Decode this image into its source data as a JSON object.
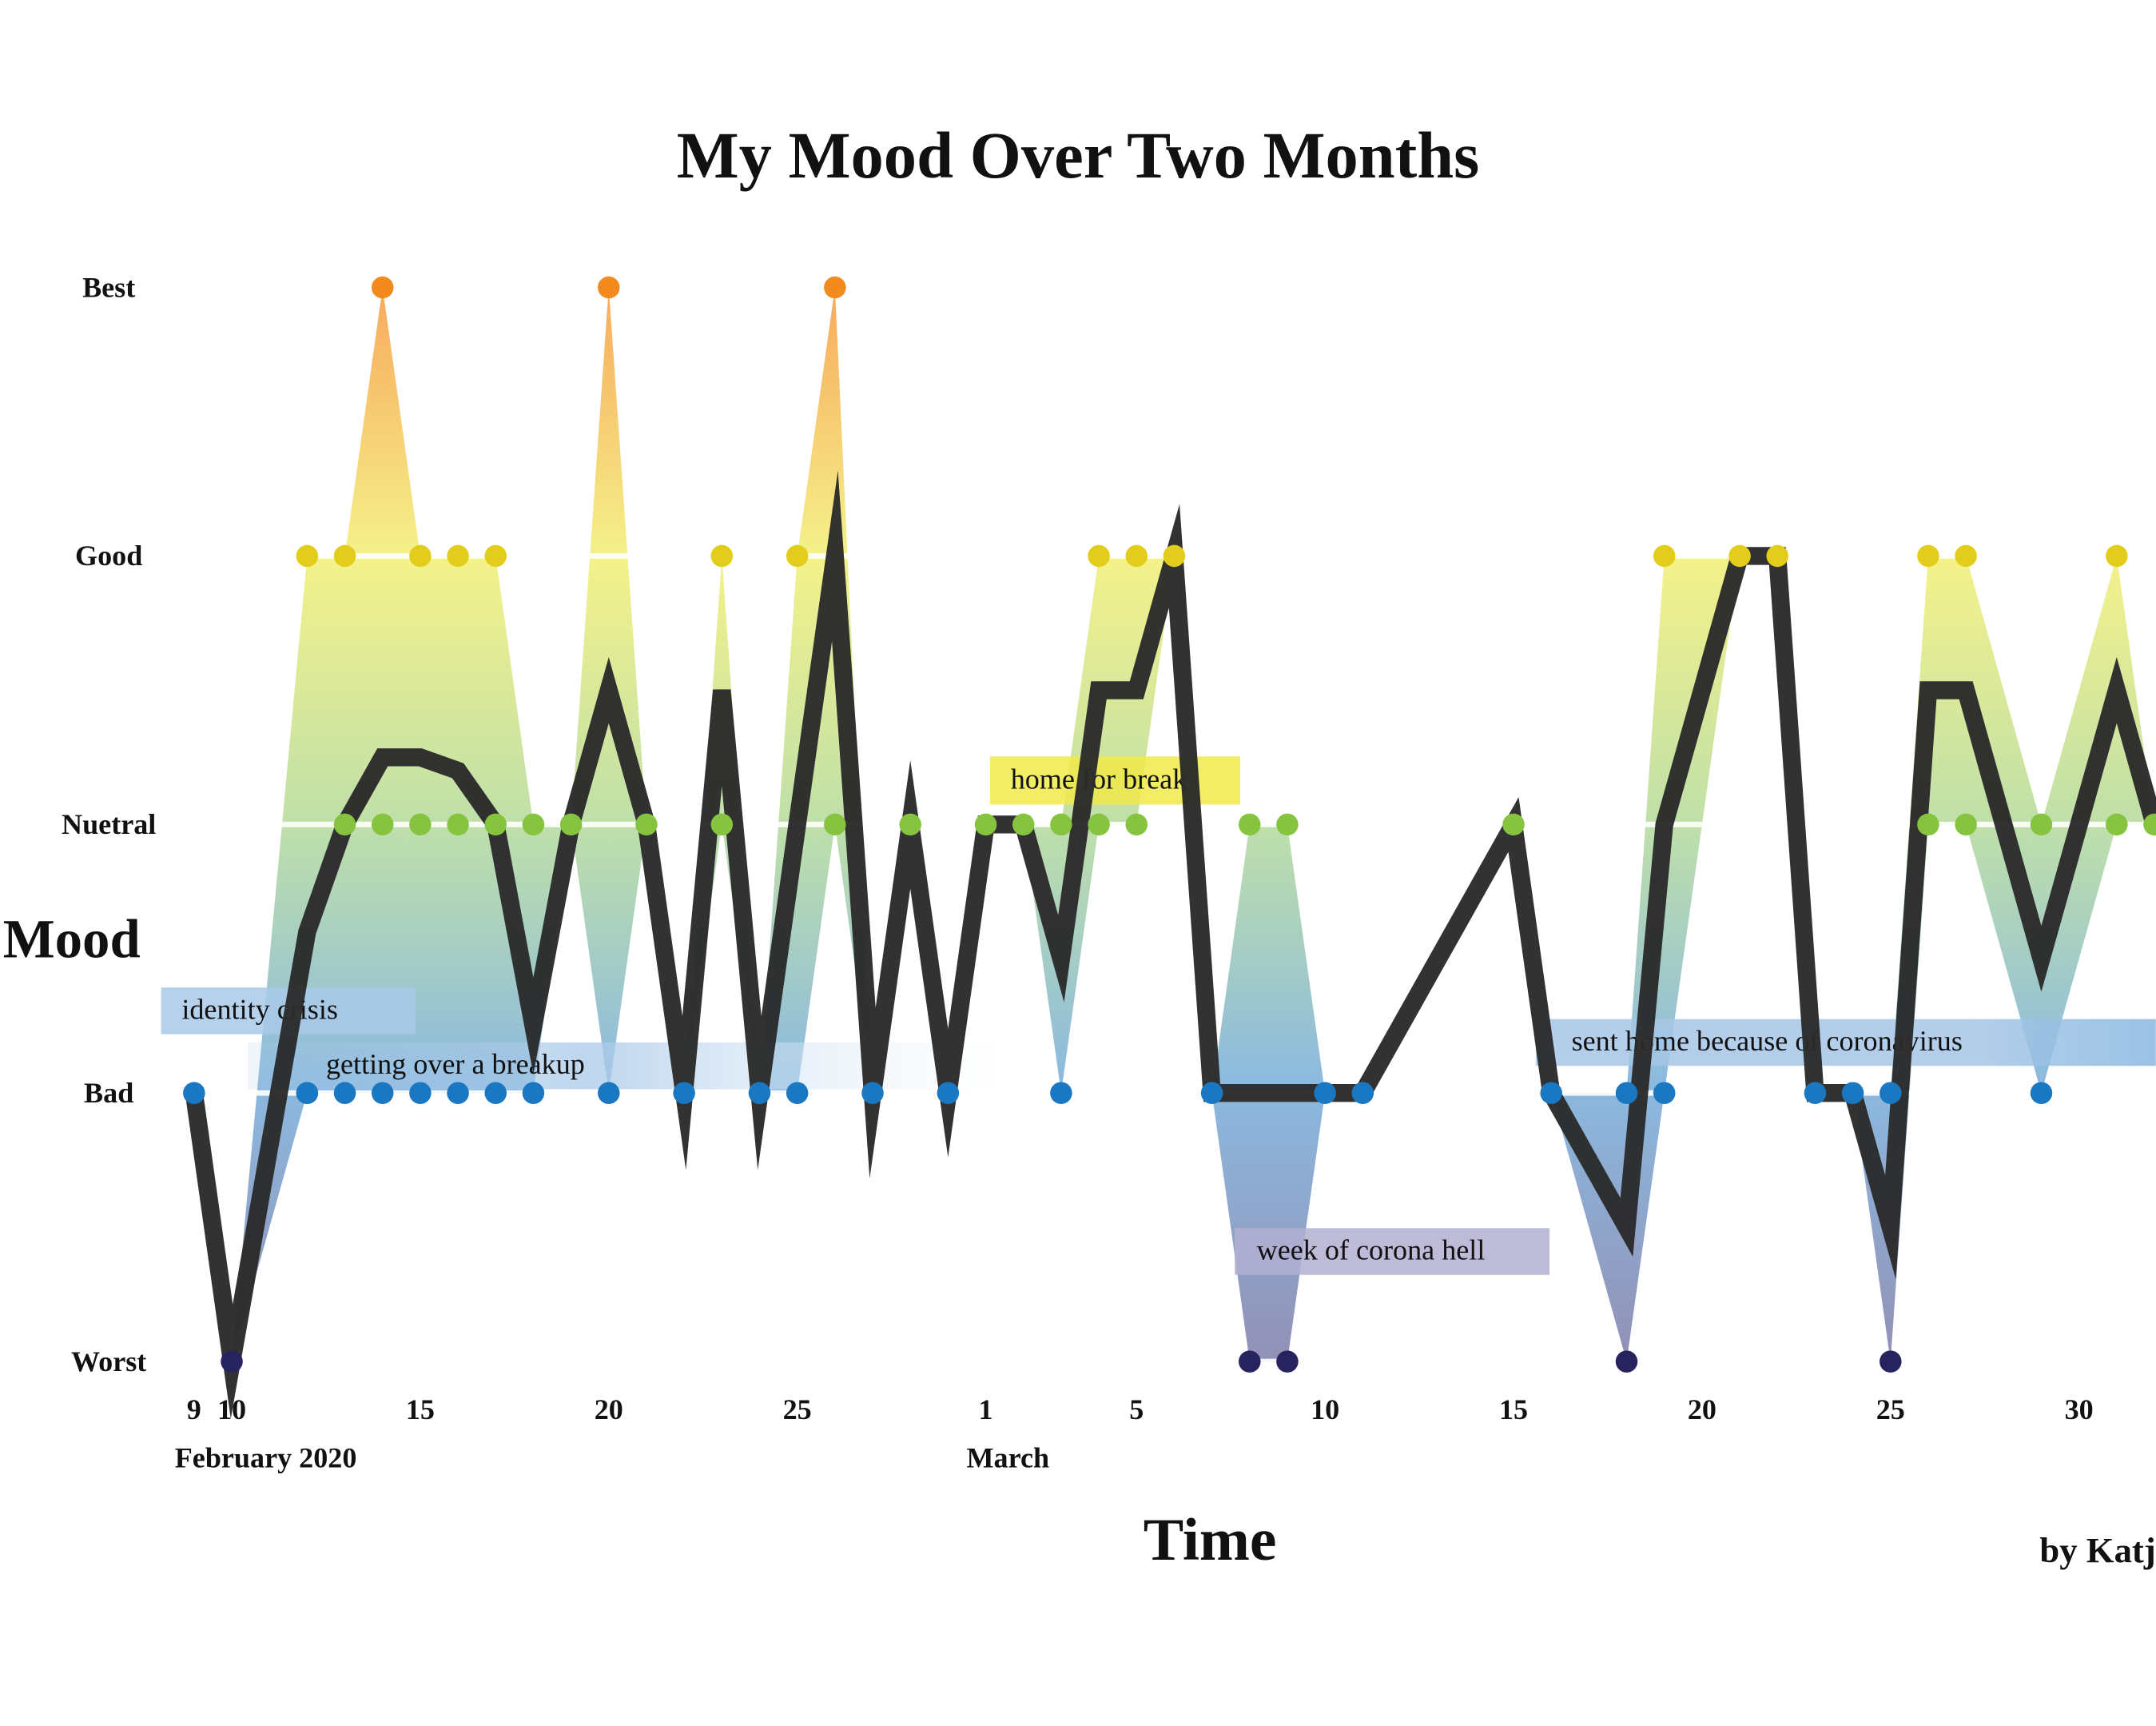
{
  "chart_data": {
    "type": "line",
    "title": "My Mood Over Two Months",
    "xlabel": "Time",
    "ylabel": "Mood",
    "credit": "by Katj",
    "xlim": [
      "2020-02-09",
      "2020-04-01"
    ],
    "ylim": [
      1,
      5
    ],
    "yticks": [
      {
        "value": 5,
        "label": "Best"
      },
      {
        "value": 4,
        "label": "Good"
      },
      {
        "value": 3,
        "label": "Nuetral"
      },
      {
        "value": 2,
        "label": "Bad"
      },
      {
        "value": 1,
        "label": "Worst"
      }
    ],
    "xticks": [
      {
        "value": "2020-02-09",
        "label": "9"
      },
      {
        "value": "2020-02-10",
        "label": "10"
      },
      {
        "value": "2020-02-15",
        "label": "15"
      },
      {
        "value": "2020-02-20",
        "label": "20"
      },
      {
        "value": "2020-02-25",
        "label": "25"
      },
      {
        "value": "2020-03-01",
        "label": "1"
      },
      {
        "value": "2020-03-05",
        "label": "5"
      },
      {
        "value": "2020-03-10",
        "label": "10"
      },
      {
        "value": "2020-03-15",
        "label": "15"
      },
      {
        "value": "2020-03-20",
        "label": "20"
      },
      {
        "value": "2020-03-25",
        "label": "25"
      },
      {
        "value": "2020-03-30",
        "label": "30"
      }
    ],
    "month_ticks": [
      {
        "value": "2020-02-09",
        "label": "February 2020"
      },
      {
        "value": "2020-03-01",
        "label": "March"
      }
    ],
    "grid": true,
    "line": {
      "color": "#2b2b2b",
      "x": [
        "2020-02-09",
        "2020-02-10",
        "2020-02-12",
        "2020-02-13",
        "2020-02-14",
        "2020-02-15",
        "2020-02-16",
        "2020-02-17",
        "2020-02-18",
        "2020-02-19",
        "2020-02-20",
        "2020-02-21",
        "2020-02-22",
        "2020-02-23",
        "2020-02-24",
        "2020-02-25",
        "2020-02-26",
        "2020-02-27",
        "2020-02-28",
        "2020-02-29",
        "2020-03-01",
        "2020-03-02",
        "2020-03-03",
        "2020-03-04",
        "2020-03-05",
        "2020-03-06",
        "2020-03-07",
        "2020-03-08",
        "2020-03-09",
        "2020-03-10",
        "2020-03-11",
        "2020-03-15",
        "2020-03-16",
        "2020-03-18",
        "2020-03-19",
        "2020-03-21",
        "2020-03-22",
        "2020-03-23",
        "2020-03-24",
        "2020-03-25",
        "2020-03-26",
        "2020-03-27",
        "2020-03-29",
        "2020-03-31",
        "2020-04-01"
      ],
      "values": [
        2,
        1,
        2.6,
        3,
        3.25,
        3.25,
        3.2,
        3,
        2.25,
        3,
        3.5,
        3,
        2,
        3.5,
        2,
        3,
        4,
        2,
        3,
        2,
        3,
        3,
        2.5,
        3.5,
        3.5,
        4,
        2,
        2,
        2,
        2,
        2,
        3,
        2,
        1.5,
        3,
        4,
        4,
        2,
        2,
        1.5,
        3.5,
        3.5,
        2.5,
        3.5,
        3
      ]
    },
    "level_colors": {
      "1": "#27235e",
      "2": "#1a78c2",
      "3": "#86c440",
      "4": "#e2cd1d",
      "5": "#f28a1e"
    },
    "points": {
      "x": [
        "2020-02-09",
        "2020-02-10",
        "2020-02-12",
        "2020-02-12",
        "2020-02-12",
        "2020-02-13",
        "2020-02-13",
        "2020-02-13",
        "2020-02-14",
        "2020-02-14",
        "2020-02-14",
        "2020-02-15",
        "2020-02-15",
        "2020-02-15",
        "2020-02-16",
        "2020-02-16",
        "2020-02-16",
        "2020-02-17",
        "2020-02-17",
        "2020-02-17",
        "2020-02-18",
        "2020-02-18",
        "2020-02-19",
        "2020-02-20",
        "2020-02-20",
        "2020-02-21",
        "2020-02-22",
        "2020-02-23",
        "2020-02-23",
        "2020-02-24",
        "2020-02-25",
        "2020-02-25",
        "2020-02-26",
        "2020-02-26",
        "2020-02-27",
        "2020-02-28",
        "2020-02-29",
        "2020-03-01",
        "2020-03-02",
        "2020-03-03",
        "2020-03-03",
        "2020-03-04",
        "2020-03-04",
        "2020-03-05",
        "2020-03-05",
        "2020-03-06",
        "2020-03-07",
        "2020-03-08",
        "2020-03-08",
        "2020-03-09",
        "2020-03-09",
        "2020-03-10",
        "2020-03-11",
        "2020-03-15",
        "2020-03-16",
        "2020-03-18",
        "2020-03-18",
        "2020-03-19",
        "2020-03-19",
        "2020-03-21",
        "2020-03-22",
        "2020-03-23",
        "2020-03-24",
        "2020-03-25",
        "2020-03-25",
        "2020-03-26",
        "2020-03-26",
        "2020-03-27",
        "2020-03-27",
        "2020-03-29",
        "2020-03-29",
        "2020-03-31",
        "2020-03-31",
        "2020-04-01"
      ],
      "values": [
        2,
        1,
        4,
        2,
        2,
        4,
        3,
        2,
        5,
        3,
        2,
        4,
        3,
        2,
        4,
        3,
        2,
        4,
        3,
        2,
        3,
        2,
        3,
        5,
        2,
        3,
        2,
        4,
        3,
        2,
        4,
        2,
        5,
        3,
        2,
        3,
        2,
        3,
        3,
        3,
        2,
        4,
        3,
        4,
        3,
        4,
        2,
        3,
        1,
        3,
        1,
        2,
        2,
        3,
        2,
        2,
        1,
        4,
        2,
        4,
        4,
        2,
        2,
        2,
        1,
        4,
        3,
        4,
        3,
        3,
        2,
        4,
        3,
        3
      ]
    },
    "annotations": [
      "identity crisis",
      "getting over a breakup",
      "home for break",
      "week of corona hell",
      "sent home because of coronavirus"
    ]
  }
}
